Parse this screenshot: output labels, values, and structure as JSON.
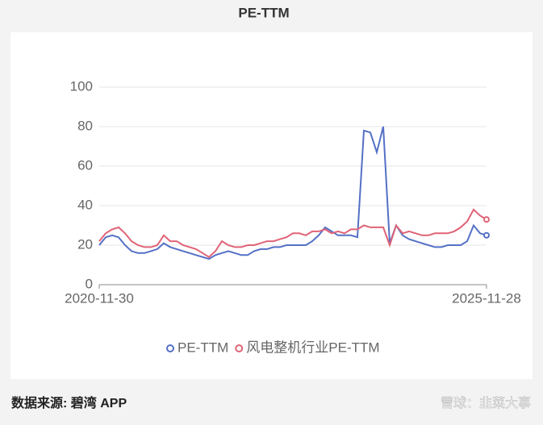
{
  "chart_data": {
    "type": "line",
    "title": "PE-TTM",
    "categories": [
      "2020-11-30",
      null,
      null,
      null,
      null,
      null,
      null,
      null,
      null,
      null,
      null,
      null,
      null,
      null,
      null,
      null,
      null,
      null,
      null,
      null,
      null,
      null,
      null,
      null,
      null,
      null,
      null,
      null,
      null,
      null,
      null,
      null,
      null,
      null,
      null,
      null,
      null,
      null,
      null,
      null,
      null,
      null,
      null,
      null,
      null,
      null,
      null,
      null,
      null,
      null,
      null,
      null,
      null,
      null,
      null,
      null,
      null,
      null,
      null,
      null,
      "2025-11-28"
    ],
    "series": [
      {
        "name": "PE-TTM",
        "color": "#5470c6",
        "values": [
          20,
          24,
          25,
          24,
          20,
          17,
          16,
          16,
          17,
          18,
          21,
          19,
          18,
          17,
          16,
          15,
          14,
          13,
          15,
          16,
          17,
          16,
          15,
          15,
          17,
          18,
          18,
          19,
          19,
          20,
          20,
          20,
          20,
          22,
          25,
          29,
          27,
          25,
          25,
          25,
          24,
          78,
          77,
          67,
          80,
          21,
          30,
          25,
          23,
          22,
          21,
          20,
          19,
          19,
          20,
          20,
          20,
          22,
          30,
          26,
          25
        ]
      },
      {
        "name": "风电整机行业PE-TTM",
        "color": "#e06377",
        "values": [
          22,
          26,
          28,
          29,
          26,
          22,
          20,
          19,
          19,
          20,
          25,
          22,
          22,
          20,
          19,
          18,
          16,
          14,
          17,
          22,
          20,
          19,
          19,
          20,
          20,
          21,
          22,
          22,
          23,
          24,
          26,
          26,
          25,
          27,
          27,
          28,
          26,
          27,
          26,
          28,
          28,
          30,
          29,
          29,
          29,
          20,
          30,
          26,
          27,
          26,
          25,
          25,
          26,
          26,
          26,
          27,
          29,
          32,
          38,
          35,
          33
        ]
      }
    ],
    "ylim": [
      0,
      100
    ],
    "yticks": [
      0,
      20,
      40,
      60,
      80,
      100
    ],
    "grid": true,
    "legend": "bottom",
    "source": "数据来源: 碧湾 APP",
    "watermark": "雪球：韭菜大事"
  }
}
